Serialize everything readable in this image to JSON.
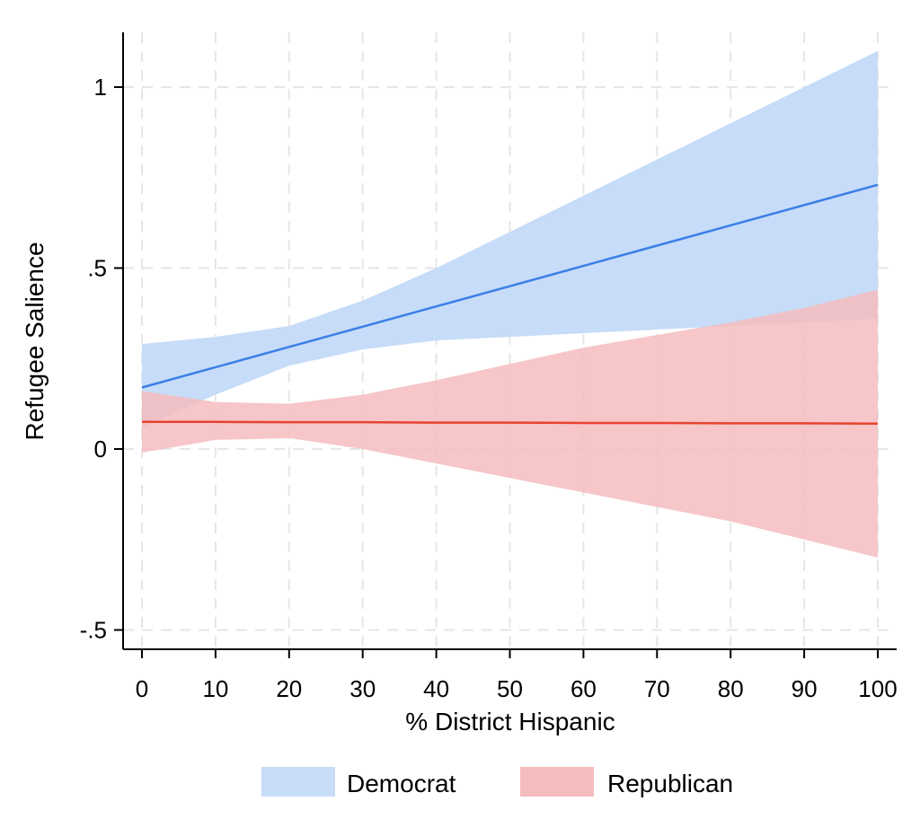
{
  "chart_data": {
    "type": "line",
    "title": "",
    "xlabel": "% District Hispanic",
    "ylabel": "Refugee Salience",
    "xlim": [
      0,
      100
    ],
    "ylim": [
      -0.55,
      1.15
    ],
    "x_ticks": [
      0,
      10,
      20,
      30,
      40,
      50,
      60,
      70,
      80,
      90,
      100
    ],
    "x_tick_labels": [
      "0",
      "10",
      "20",
      "30",
      "40",
      "50",
      "60",
      "70",
      "80",
      "90",
      "100"
    ],
    "y_ticks": [
      -0.5,
      0,
      0.5,
      1
    ],
    "y_tick_labels": [
      "-.5",
      "0",
      ".5",
      "1"
    ],
    "grid": true,
    "legend": "bottom",
    "series": [
      {
        "name": "Democrat",
        "line_color": "#3b7fe6",
        "band_color": "#c6dcf8",
        "x": [
          0,
          10,
          20,
          30,
          40,
          50,
          60,
          70,
          80,
          90,
          100
        ],
        "estimate": [
          0.17,
          0.226,
          0.282,
          0.338,
          0.394,
          0.45,
          0.506,
          0.562,
          0.618,
          0.674,
          0.73
        ],
        "lower": [
          0.06,
          0.15,
          0.23,
          0.275,
          0.3,
          0.31,
          0.32,
          0.33,
          0.34,
          0.35,
          0.36
        ],
        "upper": [
          0.29,
          0.31,
          0.34,
          0.41,
          0.5,
          0.6,
          0.7,
          0.8,
          0.9,
          1.0,
          1.1
        ]
      },
      {
        "name": "Republican",
        "line_color": "#e8432f",
        "band_color": "#f4bcbe",
        "x": [
          0,
          10,
          20,
          30,
          40,
          50,
          60,
          70,
          80,
          90,
          100
        ],
        "estimate": [
          0.075,
          0.075,
          0.074,
          0.074,
          0.073,
          0.073,
          0.072,
          0.072,
          0.071,
          0.071,
          0.07
        ],
        "lower": [
          -0.01,
          0.025,
          0.03,
          0.0,
          -0.04,
          -0.08,
          -0.12,
          -0.16,
          -0.2,
          -0.25,
          -0.3
        ],
        "upper": [
          0.16,
          0.13,
          0.125,
          0.15,
          0.19,
          0.235,
          0.28,
          0.315,
          0.35,
          0.39,
          0.44
        ]
      }
    ]
  }
}
